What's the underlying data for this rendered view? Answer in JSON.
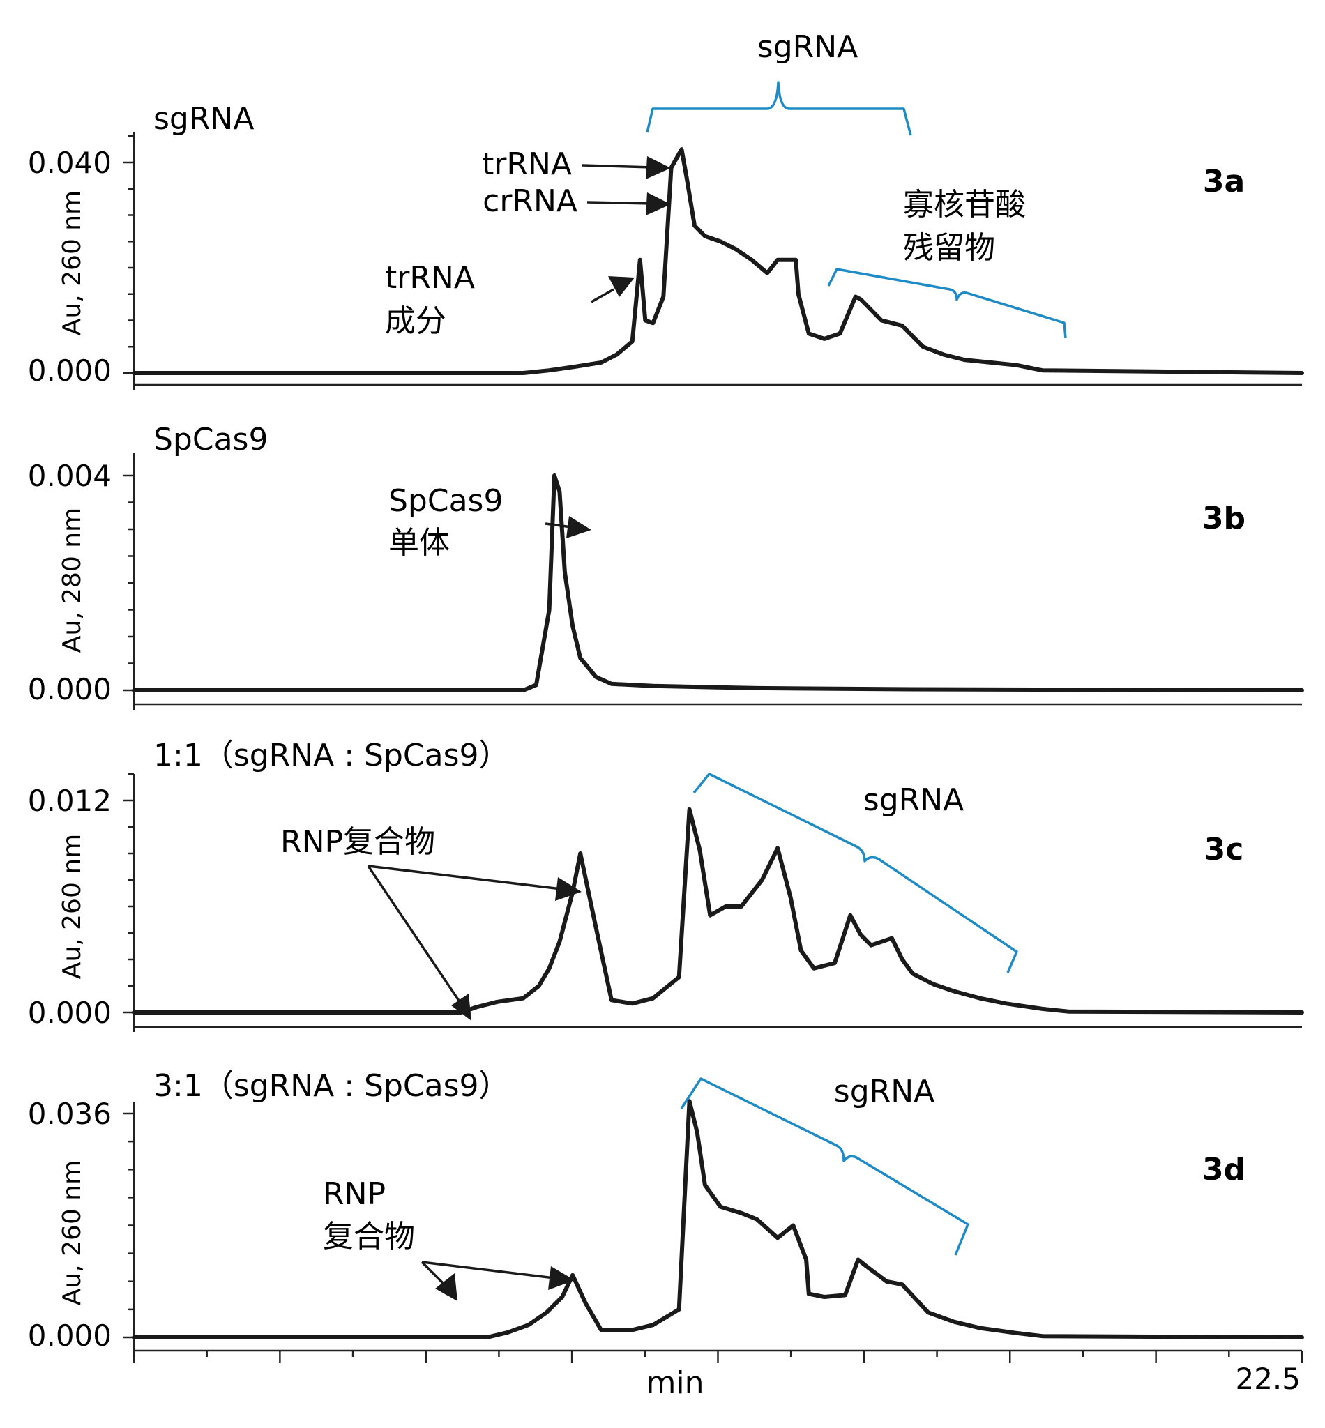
{
  "chart_data": {
    "type": "line",
    "x_range": [
      0,
      22.5
    ],
    "x_label": "min",
    "x_end_label": "22.5",
    "panels": [
      {
        "id": "3a",
        "title": "sgRNA",
        "tag": "3a",
        "ylabel": "Au, 260 nm",
        "yticks": [
          "0.000",
          "0.040"
        ],
        "ylim": [
          0,
          0.04
        ],
        "x": [
          0,
          7.5,
          8.0,
          8.5,
          9.0,
          9.3,
          9.6,
          9.75,
          9.85,
          10.0,
          10.2,
          10.35,
          10.55,
          10.65,
          10.8,
          11.0,
          11.3,
          11.6,
          11.9,
          12.2,
          12.4,
          12.75,
          12.8,
          13.0,
          13.3,
          13.6,
          13.9,
          14.0,
          14.4,
          14.8,
          15.2,
          15.6,
          16.0,
          16.5,
          17.0,
          17.5,
          22.5
        ],
        "values": [
          0,
          0,
          0.0005,
          0.0012,
          0.002,
          0.0035,
          0.006,
          0.0215,
          0.01,
          0.0095,
          0.0145,
          0.039,
          0.0425,
          0.037,
          0.028,
          0.026,
          0.025,
          0.0235,
          0.0215,
          0.019,
          0.0215,
          0.0215,
          0.015,
          0.0075,
          0.0065,
          0.0075,
          0.0145,
          0.014,
          0.01,
          0.009,
          0.005,
          0.0035,
          0.0025,
          0.002,
          0.0015,
          0.0005,
          0
        ],
        "annotations": [
          "trRNA",
          "crRNA",
          "trRNA",
          "成分",
          "寡核苷酸",
          "残留物",
          "sgRNA"
        ]
      },
      {
        "id": "3b",
        "title": "SpCas9",
        "tag": "3b",
        "ylabel": "Au, 280 nm",
        "yticks": [
          "0.000",
          "0.004"
        ],
        "ylim": [
          0,
          0.004
        ],
        "x": [
          0,
          7.5,
          7.75,
          8.0,
          8.1,
          8.2,
          8.3,
          8.45,
          8.6,
          8.9,
          9.2,
          10.0,
          12.0,
          15.0,
          22.5
        ],
        "values": [
          0,
          0,
          0.0001,
          0.0015,
          0.004,
          0.0037,
          0.0022,
          0.0012,
          0.0006,
          0.00025,
          0.00012,
          8e-05,
          4e-05,
          2e-05,
          0
        ],
        "annotations": [
          "SpCas9",
          "单体"
        ]
      },
      {
        "id": "3c",
        "title": "1:1（sgRNA : SpCas9）",
        "tag": "3c",
        "ylabel": "Au, 260 nm",
        "yticks": [
          "0.000",
          "0.012"
        ],
        "ylim": [
          0,
          0.012
        ],
        "x": [
          0,
          6.3,
          6.6,
          7.0,
          7.5,
          7.8,
          8.0,
          8.2,
          8.45,
          8.6,
          8.9,
          9.2,
          9.6,
          10.0,
          10.5,
          10.7,
          10.9,
          11.1,
          11.4,
          11.7,
          12.1,
          12.4,
          12.65,
          12.85,
          13.1,
          13.5,
          13.8,
          14.0,
          14.2,
          14.6,
          14.8,
          15.0,
          15.4,
          15.8,
          16.3,
          16.8,
          17.5,
          18.0,
          22.5
        ],
        "values": [
          0,
          0,
          0.0003,
          0.0006,
          0.0008,
          0.0015,
          0.0025,
          0.004,
          0.0068,
          0.009,
          0.0048,
          0.0007,
          0.0005,
          0.0008,
          0.002,
          0.0115,
          0.0092,
          0.0055,
          0.006,
          0.006,
          0.0075,
          0.0093,
          0.0065,
          0.0035,
          0.0025,
          0.0028,
          0.0055,
          0.0044,
          0.0038,
          0.0042,
          0.003,
          0.0022,
          0.0016,
          0.0012,
          0.0008,
          0.0005,
          0.0002,
          5e-05,
          0
        ],
        "annotations": [
          "RNP复合物",
          "sgRNA"
        ]
      },
      {
        "id": "3d",
        "title": "3:1（sgRNA : SpCas9）",
        "tag": "3d",
        "ylabel": "Au, 260 nm",
        "yticks": [
          "0.000",
          "0.036"
        ],
        "ylim": [
          0,
          0.036
        ],
        "x": [
          0,
          6.8,
          7.2,
          7.6,
          7.95,
          8.25,
          8.45,
          8.7,
          9.0,
          9.6,
          10.0,
          10.5,
          10.7,
          10.85,
          11.0,
          11.3,
          11.7,
          12.0,
          12.4,
          12.7,
          12.95,
          13.0,
          13.3,
          13.7,
          13.95,
          14.1,
          14.5,
          14.8,
          15.3,
          15.8,
          16.3,
          17.0,
          17.5,
          22.5
        ],
        "values": [
          0,
          0,
          0.0008,
          0.002,
          0.004,
          0.0065,
          0.01,
          0.0055,
          0.0012,
          0.0012,
          0.002,
          0.0045,
          0.038,
          0.033,
          0.0245,
          0.021,
          0.02,
          0.019,
          0.016,
          0.018,
          0.0125,
          0.007,
          0.0065,
          0.0068,
          0.0125,
          0.0115,
          0.009,
          0.0085,
          0.004,
          0.0025,
          0.0015,
          0.0007,
          0.0002,
          0
        ],
        "annotations": [
          "RNP",
          "复合物",
          "sgRNA"
        ]
      }
    ],
    "top_label": "sgRNA"
  }
}
